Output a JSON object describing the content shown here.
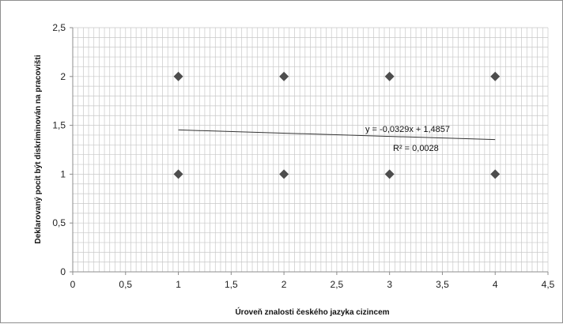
{
  "chart_data": {
    "type": "scatter",
    "title": "",
    "xlabel": "Úroveň znalosti českého jazyka cizincem",
    "ylabel": "Deklarovaný pocit být diskriminován na pracovišti",
    "xlim": [
      0,
      4.5
    ],
    "ylim": [
      0,
      2.5
    ],
    "x_ticks": [
      "0",
      "0,5",
      "1",
      "1,5",
      "2",
      "2,5",
      "3",
      "3,5",
      "4",
      "4,5"
    ],
    "y_ticks": [
      "0",
      "0,5",
      "1",
      "1,5",
      "2",
      "2,5"
    ],
    "grid": "major and minor",
    "legend": "none",
    "marker": "diamond",
    "points": [
      {
        "x": 1,
        "y": 2
      },
      {
        "x": 2,
        "y": 2
      },
      {
        "x": 3,
        "y": 2
      },
      {
        "x": 4,
        "y": 2
      },
      {
        "x": 1,
        "y": 1
      },
      {
        "x": 2,
        "y": 1
      },
      {
        "x": 3,
        "y": 1
      },
      {
        "x": 4,
        "y": 1
      }
    ],
    "trendline": {
      "slope": -0.0329,
      "intercept": 1.4857,
      "x_range": [
        1,
        4
      ],
      "equation_text": "y = -0,0329x + 1,4857",
      "r2_text": "R² = 0,0028"
    },
    "colors": {
      "marker": "#4d4d4d",
      "trendline": "#333333",
      "grid": "#c8c8c8",
      "axis": "#8c8c8c"
    }
  }
}
